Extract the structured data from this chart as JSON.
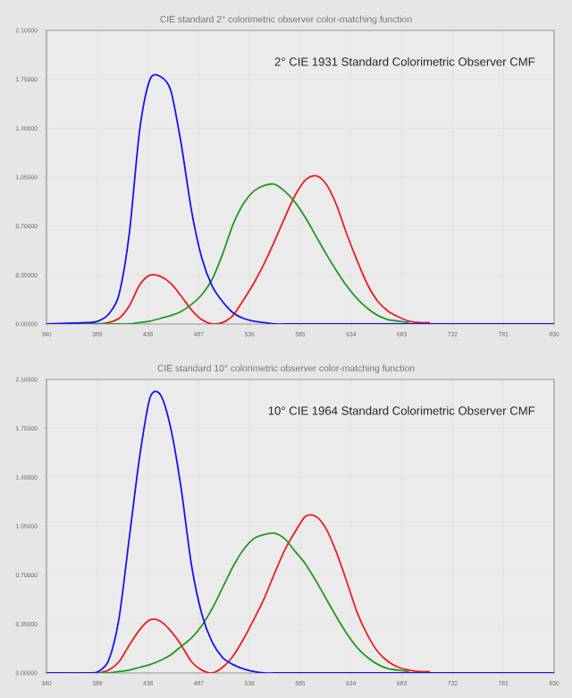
{
  "chart_data": [
    {
      "type": "line",
      "title": "CIE standard 2° colorimetric observer color-matching function",
      "annotations": [
        "2° CIE 1931 Standard Colorimetric Observer CMF"
      ],
      "x": [
        340,
        380,
        390,
        400,
        410,
        420,
        430,
        440,
        450,
        460,
        470,
        480,
        490,
        500,
        510,
        520,
        530,
        540,
        550,
        560,
        570,
        580,
        590,
        600,
        610,
        620,
        630,
        640,
        650,
        660,
        670,
        680,
        690,
        700,
        710,
        720,
        730,
        740,
        750,
        760,
        770,
        780,
        830
      ],
      "series": [
        {
          "color": "#ee1c1c",
          "values": [
            0,
            0,
            0,
            0.01,
            0.04,
            0.13,
            0.28,
            0.35,
            0.34,
            0.29,
            0.2,
            0.1,
            0.03,
            0,
            0.01,
            0.06,
            0.17,
            0.29,
            0.43,
            0.59,
            0.76,
            0.92,
            1.03,
            1.06,
            1.0,
            0.85,
            0.64,
            0.45,
            0.28,
            0.16,
            0.09,
            0.05,
            0.02,
            0.01,
            0.01,
            null,
            null,
            null,
            null,
            null,
            null,
            null,
            null
          ]
        },
        {
          "color": "#1f9a1f",
          "values": [
            0,
            0,
            0,
            0,
            0,
            0,
            0.01,
            0.02,
            0.04,
            0.06,
            0.09,
            0.14,
            0.21,
            0.32,
            0.5,
            0.71,
            0.86,
            0.95,
            0.99,
            1.0,
            0.95,
            0.87,
            0.76,
            0.63,
            0.5,
            0.38,
            0.27,
            0.18,
            0.11,
            0.06,
            0.03,
            0.02,
            0.01,
            null,
            null,
            null,
            null,
            null,
            null,
            null,
            null,
            null,
            null
          ]
        },
        {
          "color": "#1414ee",
          "values": [
            0,
            0.01,
            0.02,
            0.07,
            0.21,
            0.65,
            1.39,
            1.75,
            1.77,
            1.67,
            1.29,
            0.81,
            0.47,
            0.27,
            0.16,
            0.08,
            0.04,
            0.02,
            0.01,
            0,
            0,
            0,
            0,
            0,
            0,
            0,
            0,
            0,
            0,
            0,
            0,
            0,
            0,
            0,
            0,
            0,
            0,
            0,
            0,
            0,
            0,
            0,
            0
          ]
        }
      ],
      "xlim": [
        340,
        830
      ],
      "xticks": [
        340,
        389,
        438,
        487,
        536,
        585,
        634,
        683,
        732,
        781,
        830
      ],
      "ylim": [
        0,
        2.1
      ],
      "yticks": [
        {
          "value": 0,
          "label": "0.00000"
        },
        {
          "value": 0.35,
          "label": "0.35000"
        },
        {
          "value": 0.7,
          "label": "0.70000"
        },
        {
          "value": 1.05,
          "label": "1.05000"
        },
        {
          "value": 1.4,
          "label": "1.40000"
        },
        {
          "value": 1.75,
          "label": "1.75000"
        },
        {
          "value": 2.1,
          "label": "2.10000"
        }
      ],
      "grid": true
    },
    {
      "type": "line",
      "title": "CIE standard 10° colorimetric observer color-matching function",
      "annotations": [
        "10° CIE 1964 Standard Colorimetric Observer CMF"
      ],
      "x": [
        340,
        380,
        390,
        400,
        410,
        420,
        430,
        440,
        450,
        460,
        470,
        480,
        490,
        500,
        510,
        520,
        530,
        540,
        550,
        560,
        570,
        580,
        590,
        600,
        610,
        620,
        630,
        640,
        650,
        660,
        670,
        680,
        690,
        700,
        710,
        720,
        730,
        740,
        750,
        760,
        770,
        780,
        830
      ],
      "series": [
        {
          "color": "#ee1c1c",
          "values": [
            0,
            0,
            0,
            0.02,
            0.08,
            0.2,
            0.31,
            0.38,
            0.37,
            0.3,
            0.2,
            0.08,
            0.02,
            0,
            0.04,
            0.12,
            0.24,
            0.38,
            0.53,
            0.71,
            0.88,
            1.01,
            1.12,
            1.12,
            1.03,
            0.86,
            0.65,
            0.43,
            0.27,
            0.15,
            0.08,
            0.04,
            0.02,
            0.01,
            0.01,
            null,
            null,
            null,
            null,
            null,
            null,
            null,
            null
          ]
        },
        {
          "color": "#1f9a1f",
          "values": [
            0,
            0,
            0,
            0,
            0.01,
            0.02,
            0.04,
            0.06,
            0.09,
            0.13,
            0.19,
            0.25,
            0.34,
            0.46,
            0.61,
            0.76,
            0.88,
            0.96,
            0.99,
            1.0,
            0.96,
            0.87,
            0.78,
            0.66,
            0.53,
            0.4,
            0.28,
            0.18,
            0.11,
            0.06,
            0.03,
            0.02,
            0.01,
            null,
            null,
            null,
            null,
            null,
            null,
            null,
            null,
            null,
            null
          ]
        },
        {
          "color": "#1414ee",
          "values": [
            0,
            0,
            0.01,
            0.09,
            0.39,
            0.97,
            1.55,
            1.97,
            1.99,
            1.75,
            1.32,
            0.77,
            0.42,
            0.22,
            0.11,
            0.06,
            0.03,
            0.01,
            0,
            0,
            0,
            0,
            0,
            0,
            0,
            0,
            0,
            0,
            0,
            0,
            0,
            0,
            0,
            0,
            0,
            0,
            0,
            0,
            0,
            0,
            0,
            0,
            0
          ]
        }
      ],
      "xlim": [
        340,
        830
      ],
      "xticks": [
        340,
        389,
        438,
        487,
        536,
        585,
        634,
        683,
        732,
        781,
        830
      ],
      "ylim": [
        0,
        2.1
      ],
      "yticks": [
        {
          "value": 0,
          "label": "0.00000"
        },
        {
          "value": 0.35,
          "label": "0.35000"
        },
        {
          "value": 0.7,
          "label": "0.70000"
        },
        {
          "value": 1.05,
          "label": "1.05000"
        },
        {
          "value": 1.4,
          "label": "1.40000"
        },
        {
          "value": 1.75,
          "label": "1.75000"
        },
        {
          "value": 2.1,
          "label": "2.10000"
        }
      ],
      "grid": true
    }
  ]
}
